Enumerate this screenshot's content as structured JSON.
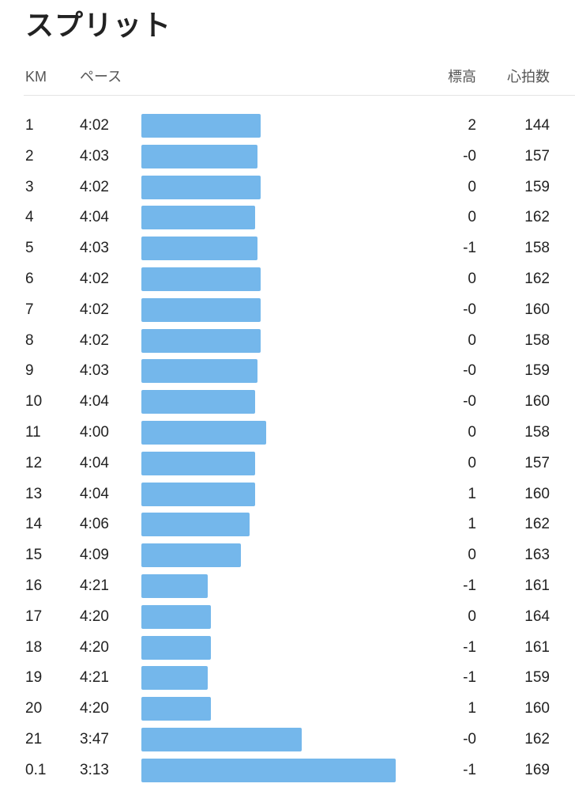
{
  "header": {
    "title": "スプリット"
  },
  "table": {
    "columns": [
      "KM",
      "ペース",
      "標高",
      "心拍数"
    ],
    "rows": [
      [
        "1",
        "4:02",
        "2",
        "144"
      ],
      [
        "2",
        "4:03",
        "-0",
        "157"
      ],
      [
        "3",
        "4:02",
        "0",
        "159"
      ],
      [
        "4",
        "4:04",
        "0",
        "162"
      ],
      [
        "5",
        "4:03",
        "-1",
        "158"
      ],
      [
        "6",
        "4:02",
        "0",
        "162"
      ],
      [
        "7",
        "4:02",
        "-0",
        "160"
      ],
      [
        "8",
        "4:02",
        "0",
        "158"
      ],
      [
        "9",
        "4:03",
        "-0",
        "159"
      ],
      [
        "10",
        "4:04",
        "-0",
        "160"
      ],
      [
        "11",
        "4:00",
        "0",
        "158"
      ],
      [
        "12",
        "4:04",
        "0",
        "157"
      ],
      [
        "13",
        "4:04",
        "1",
        "160"
      ],
      [
        "14",
        "4:06",
        "1",
        "162"
      ],
      [
        "15",
        "4:09",
        "0",
        "163"
      ],
      [
        "16",
        "4:21",
        "-1",
        "161"
      ],
      [
        "17",
        "4:20",
        "0",
        "164"
      ],
      [
        "18",
        "4:20",
        "-1",
        "161"
      ],
      [
        "19",
        "4:21",
        "-1",
        "159"
      ],
      [
        "20",
        "4:20",
        "1",
        "160"
      ],
      [
        "21",
        "3:47",
        "-0",
        "162"
      ],
      [
        "0.1",
        "3:13",
        "-1",
        "169"
      ]
    ]
  }
}
